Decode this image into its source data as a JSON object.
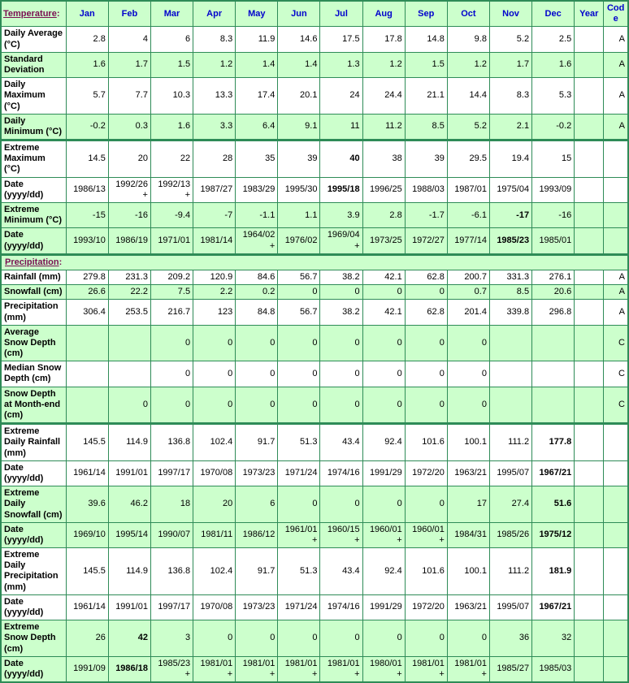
{
  "colors": {
    "row_green": "#ccffcc",
    "row_white": "#ffffff",
    "border_green": "#2E8B57",
    "header_blue": "#0000cc",
    "label_blue": "#0000cc",
    "link_maroon": "#7A0E52",
    "value_black": "#000000"
  },
  "table": {
    "header": {
      "section_link": "Temperature",
      "colon": ":",
      "months": [
        "Jan",
        "Feb",
        "Mar",
        "Apr",
        "May",
        "Jun",
        "Jul",
        "Aug",
        "Sep",
        "Oct",
        "Nov",
        "Dec"
      ],
      "year": "Year",
      "code": "Code"
    },
    "rows": [
      {
        "type": "data",
        "label": "Daily Average (°C)",
        "shade": "white",
        "values": [
          "2.8",
          "4",
          "6",
          "8.3",
          "11.9",
          "14.6",
          "17.5",
          "17.8",
          "14.8",
          "9.8",
          "5.2",
          "2.5"
        ],
        "bold": [],
        "year": "",
        "code": "A"
      },
      {
        "type": "data",
        "label": "Standard Deviation",
        "shade": "green",
        "values": [
          "1.6",
          "1.7",
          "1.5",
          "1.2",
          "1.4",
          "1.4",
          "1.3",
          "1.2",
          "1.5",
          "1.2",
          "1.7",
          "1.6"
        ],
        "bold": [],
        "year": "",
        "code": "A"
      },
      {
        "type": "data",
        "label": "Daily Maximum (°C)",
        "shade": "white",
        "values": [
          "5.7",
          "7.7",
          "10.3",
          "13.3",
          "17.4",
          "20.1",
          "24",
          "24.4",
          "21.1",
          "14.4",
          "8.3",
          "5.3"
        ],
        "bold": [],
        "year": "",
        "code": "A"
      },
      {
        "type": "data",
        "label": "Daily Minimum (°C)",
        "shade": "green",
        "values": [
          "-0.2",
          "0.3",
          "1.6",
          "3.3",
          "6.4",
          "9.1",
          "11",
          "11.2",
          "8.5",
          "5.2",
          "2.1",
          "-0.2"
        ],
        "bold": [],
        "year": "",
        "code": "A"
      },
      {
        "type": "data",
        "label": "Extreme Maximum (°C)",
        "shade": "white",
        "thick_top": true,
        "values": [
          "14.5",
          "20",
          "22",
          "28",
          "35",
          "39",
          "40",
          "38",
          "39",
          "29.5",
          "19.4",
          "15"
        ],
        "bold": [
          6
        ],
        "year": "",
        "code": ""
      },
      {
        "type": "data",
        "label": "Date (yyyy/dd)",
        "shade": "white",
        "values": [
          "1986/13",
          "1992/26+",
          "1992/13+",
          "1987/27",
          "1983/29",
          "1995/30",
          "1995/18",
          "1996/25",
          "1988/03",
          "1987/01",
          "1975/04",
          "1993/09"
        ],
        "bold": [
          6
        ],
        "year": "",
        "code": ""
      },
      {
        "type": "data",
        "label": "Extreme Minimum (°C)",
        "shade": "green",
        "values": [
          "-15",
          "-16",
          "-9.4",
          "-7",
          "-1.1",
          "1.1",
          "3.9",
          "2.8",
          "-1.7",
          "-6.1",
          "-17",
          "-16"
        ],
        "bold": [
          10
        ],
        "year": "",
        "code": ""
      },
      {
        "type": "data",
        "label": "Date (yyyy/dd)",
        "shade": "green",
        "values": [
          "1993/10",
          "1986/19",
          "1971/01",
          "1981/14",
          "1964/02+",
          "1976/02",
          "1969/04+",
          "1973/25",
          "1972/27",
          "1977/14",
          "1985/23",
          "1985/01"
        ],
        "bold": [
          10
        ],
        "year": "",
        "code": ""
      },
      {
        "type": "section",
        "label": "Precipitation",
        "colon": ":"
      },
      {
        "type": "data",
        "label": "Rainfall (mm)",
        "shade": "white",
        "values": [
          "279.8",
          "231.3",
          "209.2",
          "120.9",
          "84.6",
          "56.7",
          "38.2",
          "42.1",
          "62.8",
          "200.7",
          "331.3",
          "276.1"
        ],
        "bold": [],
        "year": "",
        "code": "A"
      },
      {
        "type": "data",
        "label": "Snowfall (cm)",
        "shade": "green",
        "values": [
          "26.6",
          "22.2",
          "7.5",
          "2.2",
          "0.2",
          "0",
          "0",
          "0",
          "0",
          "0.7",
          "8.5",
          "20.6"
        ],
        "bold": [],
        "year": "",
        "code": "A"
      },
      {
        "type": "data",
        "label": "Precipitation (mm)",
        "shade": "white",
        "values": [
          "306.4",
          "253.5",
          "216.7",
          "123",
          "84.8",
          "56.7",
          "38.2",
          "42.1",
          "62.8",
          "201.4",
          "339.8",
          "296.8"
        ],
        "bold": [],
        "year": "",
        "code": "A"
      },
      {
        "type": "data",
        "label": "Average Snow Depth (cm)",
        "shade": "green",
        "values": [
          "",
          "",
          "0",
          "0",
          "0",
          "0",
          "0",
          "0",
          "0",
          "0",
          "",
          ""
        ],
        "bold": [],
        "year": "",
        "code": "C"
      },
      {
        "type": "data",
        "label": "Median Snow Depth (cm)",
        "shade": "white",
        "values": [
          "",
          "",
          "0",
          "0",
          "0",
          "0",
          "0",
          "0",
          "0",
          "0",
          "",
          ""
        ],
        "bold": [],
        "year": "",
        "code": "C"
      },
      {
        "type": "data",
        "label": "Snow Depth at Month-end (cm)",
        "shade": "green",
        "values": [
          "",
          "0",
          "0",
          "0",
          "0",
          "0",
          "0",
          "0",
          "0",
          "0",
          "",
          ""
        ],
        "bold": [],
        "year": "",
        "code": "C"
      },
      {
        "type": "data",
        "label": "Extreme Daily Rainfall (mm)",
        "shade": "white",
        "thick_top": true,
        "values": [
          "145.5",
          "114.9",
          "136.8",
          "102.4",
          "91.7",
          "51.3",
          "43.4",
          "92.4",
          "101.6",
          "100.1",
          "111.2",
          "177.8"
        ],
        "bold": [
          11
        ],
        "year": "",
        "code": ""
      },
      {
        "type": "data",
        "label": "Date (yyyy/dd)",
        "shade": "white",
        "values": [
          "1961/14",
          "1991/01",
          "1997/17",
          "1970/08",
          "1973/23",
          "1971/24",
          "1974/16",
          "1991/29",
          "1972/20",
          "1963/21",
          "1995/07",
          "1967/21"
        ],
        "bold": [
          11
        ],
        "year": "",
        "code": ""
      },
      {
        "type": "data",
        "label": "Extreme Daily Snowfall (cm)",
        "shade": "green",
        "values": [
          "39.6",
          "46.2",
          "18",
          "20",
          "6",
          "0",
          "0",
          "0",
          "0",
          "17",
          "27.4",
          "51.6"
        ],
        "bold": [
          11
        ],
        "year": "",
        "code": ""
      },
      {
        "type": "data",
        "label": "Date (yyyy/dd)",
        "shade": "green",
        "values": [
          "1969/10",
          "1995/14",
          "1990/07",
          "1981/11",
          "1986/12",
          "1961/01+",
          "1960/15+",
          "1960/01+",
          "1960/01+",
          "1984/31",
          "1985/26",
          "1975/12"
        ],
        "bold": [
          11
        ],
        "year": "",
        "code": ""
      },
      {
        "type": "data",
        "label": "Extreme Daily Precipitation (mm)",
        "shade": "white",
        "values": [
          "145.5",
          "114.9",
          "136.8",
          "102.4",
          "91.7",
          "51.3",
          "43.4",
          "92.4",
          "101.6",
          "100.1",
          "111.2",
          "181.9"
        ],
        "bold": [
          11
        ],
        "year": "",
        "code": ""
      },
      {
        "type": "data",
        "label": "Date (yyyy/dd)",
        "shade": "white",
        "values": [
          "1961/14",
          "1991/01",
          "1997/17",
          "1970/08",
          "1973/23",
          "1971/24",
          "1974/16",
          "1991/29",
          "1972/20",
          "1963/21",
          "1995/07",
          "1967/21"
        ],
        "bold": [
          11
        ],
        "year": "",
        "code": ""
      },
      {
        "type": "data",
        "label": "Extreme Snow Depth (cm)",
        "shade": "green",
        "values": [
          "26",
          "42",
          "3",
          "0",
          "0",
          "0",
          "0",
          "0",
          "0",
          "0",
          "36",
          "32"
        ],
        "bold": [
          1
        ],
        "year": "",
        "code": ""
      },
      {
        "type": "data",
        "label": "Date (yyyy/dd)",
        "shade": "green",
        "values": [
          "1991/09",
          "1986/18",
          "1985/23+",
          "1981/01+",
          "1981/01+",
          "1981/01+",
          "1981/01+",
          "1980/01+",
          "1981/01+",
          "1981/01+",
          "1985/27",
          "1985/03"
        ],
        "bold": [
          1
        ],
        "year": "",
        "code": ""
      }
    ]
  },
  "chart_data": {
    "type": "table",
    "categories": [
      "Jan",
      "Feb",
      "Mar",
      "Apr",
      "May",
      "Jun",
      "Jul",
      "Aug",
      "Sep",
      "Oct",
      "Nov",
      "Dec"
    ],
    "series": [
      {
        "name": "Daily Average (°C)",
        "values": [
          2.8,
          4,
          6,
          8.3,
          11.9,
          14.6,
          17.5,
          17.8,
          14.8,
          9.8,
          5.2,
          2.5
        ],
        "code": "A"
      },
      {
        "name": "Standard Deviation",
        "values": [
          1.6,
          1.7,
          1.5,
          1.2,
          1.4,
          1.4,
          1.3,
          1.2,
          1.5,
          1.2,
          1.7,
          1.6
        ],
        "code": "A"
      },
      {
        "name": "Daily Maximum (°C)",
        "values": [
          5.7,
          7.7,
          10.3,
          13.3,
          17.4,
          20.1,
          24,
          24.4,
          21.1,
          14.4,
          8.3,
          5.3
        ],
        "code": "A"
      },
      {
        "name": "Daily Minimum (°C)",
        "values": [
          -0.2,
          0.3,
          1.6,
          3.3,
          6.4,
          9.1,
          11,
          11.2,
          8.5,
          5.2,
          2.1,
          -0.2
        ],
        "code": "A"
      },
      {
        "name": "Extreme Maximum (°C)",
        "values": [
          14.5,
          20,
          22,
          28,
          35,
          39,
          40,
          38,
          39,
          29.5,
          19.4,
          15
        ]
      },
      {
        "name": "Extreme Maximum Date (yyyy/dd)",
        "values": [
          "1986/13",
          "1992/26+",
          "1992/13+",
          "1987/27",
          "1983/29",
          "1995/30",
          "1995/18",
          "1996/25",
          "1988/03",
          "1987/01",
          "1975/04",
          "1993/09"
        ]
      },
      {
        "name": "Extreme Minimum (°C)",
        "values": [
          -15,
          -16,
          -9.4,
          -7,
          -1.1,
          1.1,
          3.9,
          2.8,
          -1.7,
          -6.1,
          -17,
          -16
        ]
      },
      {
        "name": "Extreme Minimum Date (yyyy/dd)",
        "values": [
          "1993/10",
          "1986/19",
          "1971/01",
          "1981/14",
          "1964/02+",
          "1976/02",
          "1969/04+",
          "1973/25",
          "1972/27",
          "1977/14",
          "1985/23",
          "1985/01"
        ]
      },
      {
        "name": "Rainfall (mm)",
        "values": [
          279.8,
          231.3,
          209.2,
          120.9,
          84.6,
          56.7,
          38.2,
          42.1,
          62.8,
          200.7,
          331.3,
          276.1
        ],
        "code": "A"
      },
      {
        "name": "Snowfall (cm)",
        "values": [
          26.6,
          22.2,
          7.5,
          2.2,
          0.2,
          0,
          0,
          0,
          0,
          0.7,
          8.5,
          20.6
        ],
        "code": "A"
      },
      {
        "name": "Precipitation (mm)",
        "values": [
          306.4,
          253.5,
          216.7,
          123,
          84.8,
          56.7,
          38.2,
          42.1,
          62.8,
          201.4,
          339.8,
          296.8
        ],
        "code": "A"
      },
      {
        "name": "Average Snow Depth (cm)",
        "values": [
          null,
          null,
          0,
          0,
          0,
          0,
          0,
          0,
          0,
          0,
          null,
          null
        ],
        "code": "C"
      },
      {
        "name": "Median Snow Depth (cm)",
        "values": [
          null,
          null,
          0,
          0,
          0,
          0,
          0,
          0,
          0,
          0,
          null,
          null
        ],
        "code": "C"
      },
      {
        "name": "Snow Depth at Month-end (cm)",
        "values": [
          null,
          0,
          0,
          0,
          0,
          0,
          0,
          0,
          0,
          0,
          null,
          null
        ],
        "code": "C"
      },
      {
        "name": "Extreme Daily Rainfall (mm)",
        "values": [
          145.5,
          114.9,
          136.8,
          102.4,
          91.7,
          51.3,
          43.4,
          92.4,
          101.6,
          100.1,
          111.2,
          177.8
        ]
      },
      {
        "name": "Extreme Daily Rainfall Date (yyyy/dd)",
        "values": [
          "1961/14",
          "1991/01",
          "1997/17",
          "1970/08",
          "1973/23",
          "1971/24",
          "1974/16",
          "1991/29",
          "1972/20",
          "1963/21",
          "1995/07",
          "1967/21"
        ]
      },
      {
        "name": "Extreme Daily Snowfall (cm)",
        "values": [
          39.6,
          46.2,
          18,
          20,
          6,
          0,
          0,
          0,
          0,
          17,
          27.4,
          51.6
        ]
      },
      {
        "name": "Extreme Daily Snowfall Date (yyyy/dd)",
        "values": [
          "1969/10",
          "1995/14",
          "1990/07",
          "1981/11",
          "1986/12",
          "1961/01+",
          "1960/15+",
          "1960/01+",
          "1960/01+",
          "1984/31",
          "1985/26",
          "1975/12"
        ]
      },
      {
        "name": "Extreme Daily Precipitation (mm)",
        "values": [
          145.5,
          114.9,
          136.8,
          102.4,
          91.7,
          51.3,
          43.4,
          92.4,
          101.6,
          100.1,
          111.2,
          181.9
        ]
      },
      {
        "name": "Extreme Daily Precipitation Date (yyyy/dd)",
        "values": [
          "1961/14",
          "1991/01",
          "1997/17",
          "1970/08",
          "1973/23",
          "1971/24",
          "1974/16",
          "1991/29",
          "1972/20",
          "1963/21",
          "1995/07",
          "1967/21"
        ]
      },
      {
        "name": "Extreme Snow Depth (cm)",
        "values": [
          26,
          42,
          3,
          0,
          0,
          0,
          0,
          0,
          0,
          0,
          36,
          32
        ]
      },
      {
        "name": "Extreme Snow Depth Date (yyyy/dd)",
        "values": [
          "1991/09",
          "1986/18",
          "1985/23+",
          "1981/01+",
          "1981/01+",
          "1981/01+",
          "1981/01+",
          "1980/01+",
          "1981/01+",
          "1981/01+",
          "1985/27",
          "1985/03"
        ]
      }
    ]
  }
}
